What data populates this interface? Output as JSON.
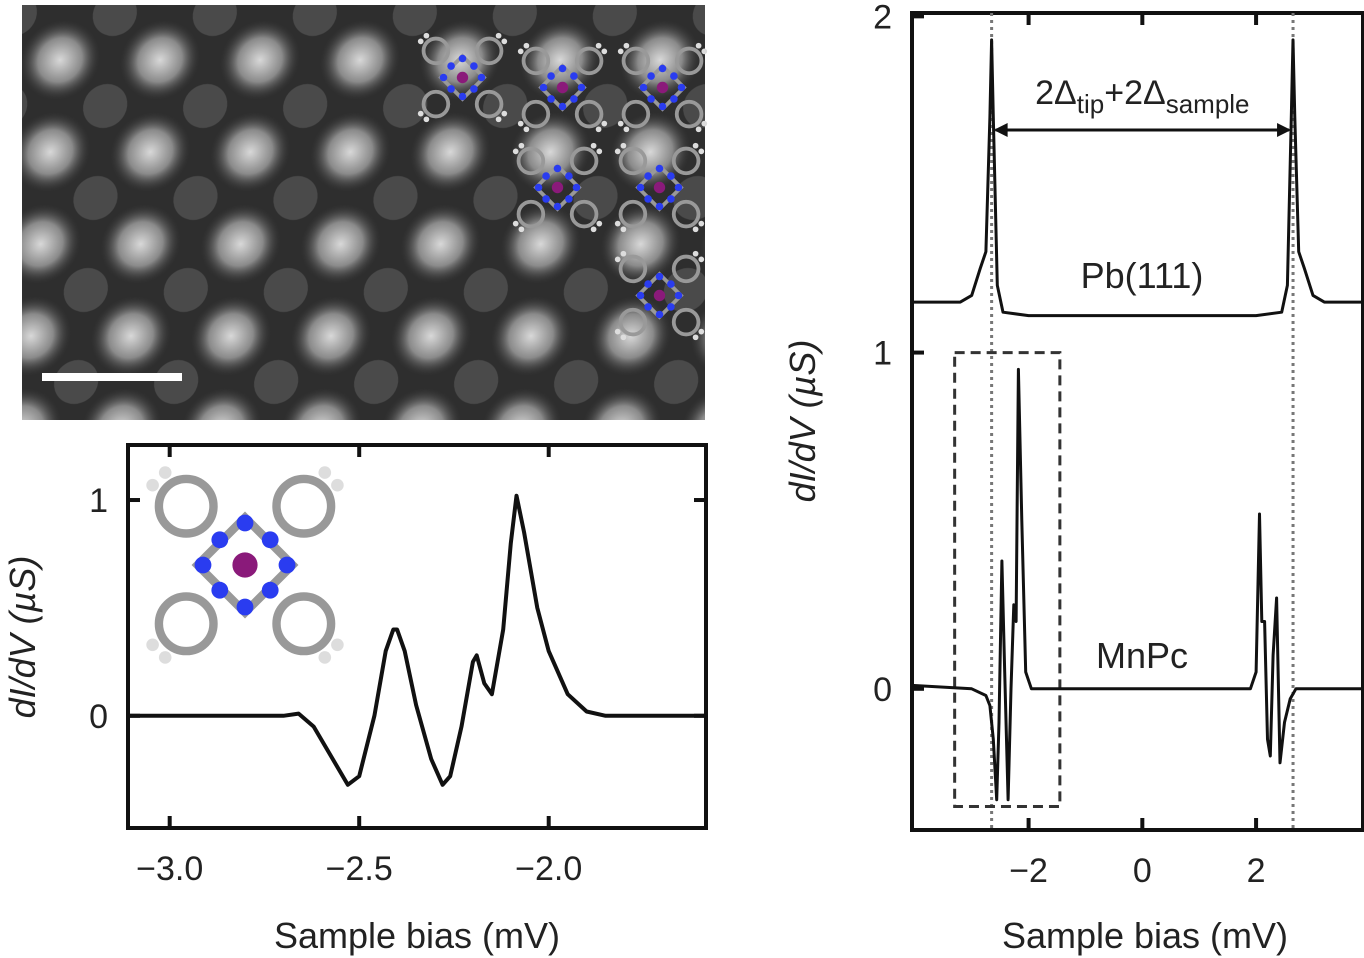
{
  "chart_data": [
    {
      "type": "line",
      "xlabel": "Sample bias (mV)",
      "ylabel": "dI/dV (µS)",
      "xlim": [
        -3.11,
        -1.585
      ],
      "ylim": [
        -0.52,
        1.255
      ],
      "xticks": [
        {
          "value": -3,
          "label": "−3.0"
        },
        {
          "value": -2.5,
          "label": "−2.5"
        },
        {
          "value": -2,
          "label": "−2.0"
        }
      ],
      "yticks": [
        0,
        1
      ],
      "series": [
        {
          "color": "#111111",
          "x": [
            -3.11,
            -2.7,
            -2.66,
            -2.62,
            -2.57,
            -2.53,
            -2.5,
            -2.46,
            -2.43,
            -2.41,
            -2.4,
            -2.38,
            -2.35,
            -2.31,
            -2.28,
            -2.26,
            -2.23,
            -2.2,
            -2.19,
            -2.17,
            -2.15,
            -2.12,
            -2.1,
            -2.085,
            -2.065,
            -2.03,
            -2.0,
            -1.95,
            -1.9,
            -1.85,
            -1.585
          ],
          "values": [
            0,
            0,
            0.01,
            -0.05,
            -0.2,
            -0.32,
            -0.28,
            0,
            0.3,
            0.4,
            0.4,
            0.3,
            0.05,
            -0.2,
            -0.32,
            -0.28,
            -0.05,
            0.25,
            0.28,
            0.15,
            0.1,
            0.4,
            0.8,
            1.02,
            0.85,
            0.5,
            0.3,
            0.1,
            0.02,
            0,
            0
          ]
        }
      ]
    },
    {
      "type": "line",
      "xlabel": "Sample bias (mV)",
      "ylabel": "dI/dV (µS)",
      "xlim": [
        -4.05,
        3.88
      ],
      "ylim": [
        -0.42,
        2.01
      ],
      "xticks": [
        {
          "value": -2,
          "label": "−2"
        },
        0,
        2
      ],
      "yticks": [
        0,
        1,
        2
      ],
      "annotation": [
        "2Δ",
        "tip",
        "+2Δ",
        "sample"
      ],
      "vlines": [
        -2.65,
        2.65
      ],
      "box": {
        "xlim": [
          -3.3,
          -1.45
        ],
        "ylim": [
          -0.35,
          1.0
        ]
      },
      "series": [
        {
          "name": "Pb(111)",
          "color": "#111111",
          "x": [
            -4.05,
            -3.2,
            -3.0,
            -2.85,
            -2.75,
            -2.68,
            -2.65,
            -2.62,
            -2.55,
            -2.45,
            -2.0,
            0,
            2.0,
            2.45,
            2.55,
            2.62,
            2.65,
            2.68,
            2.75,
            2.85,
            3.0,
            3.2,
            3.88
          ],
          "values": [
            1.15,
            1.15,
            1.17,
            1.25,
            1.3,
            1.7,
            1.93,
            1.7,
            1.2,
            1.12,
            1.11,
            1.11,
            1.11,
            1.12,
            1.2,
            1.7,
            1.93,
            1.7,
            1.3,
            1.25,
            1.17,
            1.15,
            1.15
          ]
        },
        {
          "name": "MnPc",
          "color": "#111111",
          "x": [
            -4.05,
            -3.0,
            -2.75,
            -2.68,
            -2.62,
            -2.56,
            -2.52,
            -2.47,
            -2.42,
            -2.36,
            -2.31,
            -2.26,
            -2.22,
            -2.18,
            -2.12,
            -2.05,
            -1.95,
            0,
            1.9,
            2.0,
            2.06,
            2.1,
            2.15,
            2.2,
            2.25,
            2.3,
            2.36,
            2.42,
            2.5,
            2.6,
            2.7,
            3.88
          ],
          "values": [
            0.01,
            0,
            -0.02,
            -0.05,
            -0.15,
            -0.33,
            -0.1,
            0.38,
            0.05,
            -0.33,
            0,
            0.25,
            0.2,
            0.95,
            0.5,
            0.05,
            0,
            0,
            0,
            0.05,
            0.52,
            0.2,
            0.2,
            -0.15,
            -0.2,
            0.1,
            0.27,
            -0.22,
            -0.1,
            -0.03,
            0,
            0
          ]
        }
      ]
    }
  ]
}
